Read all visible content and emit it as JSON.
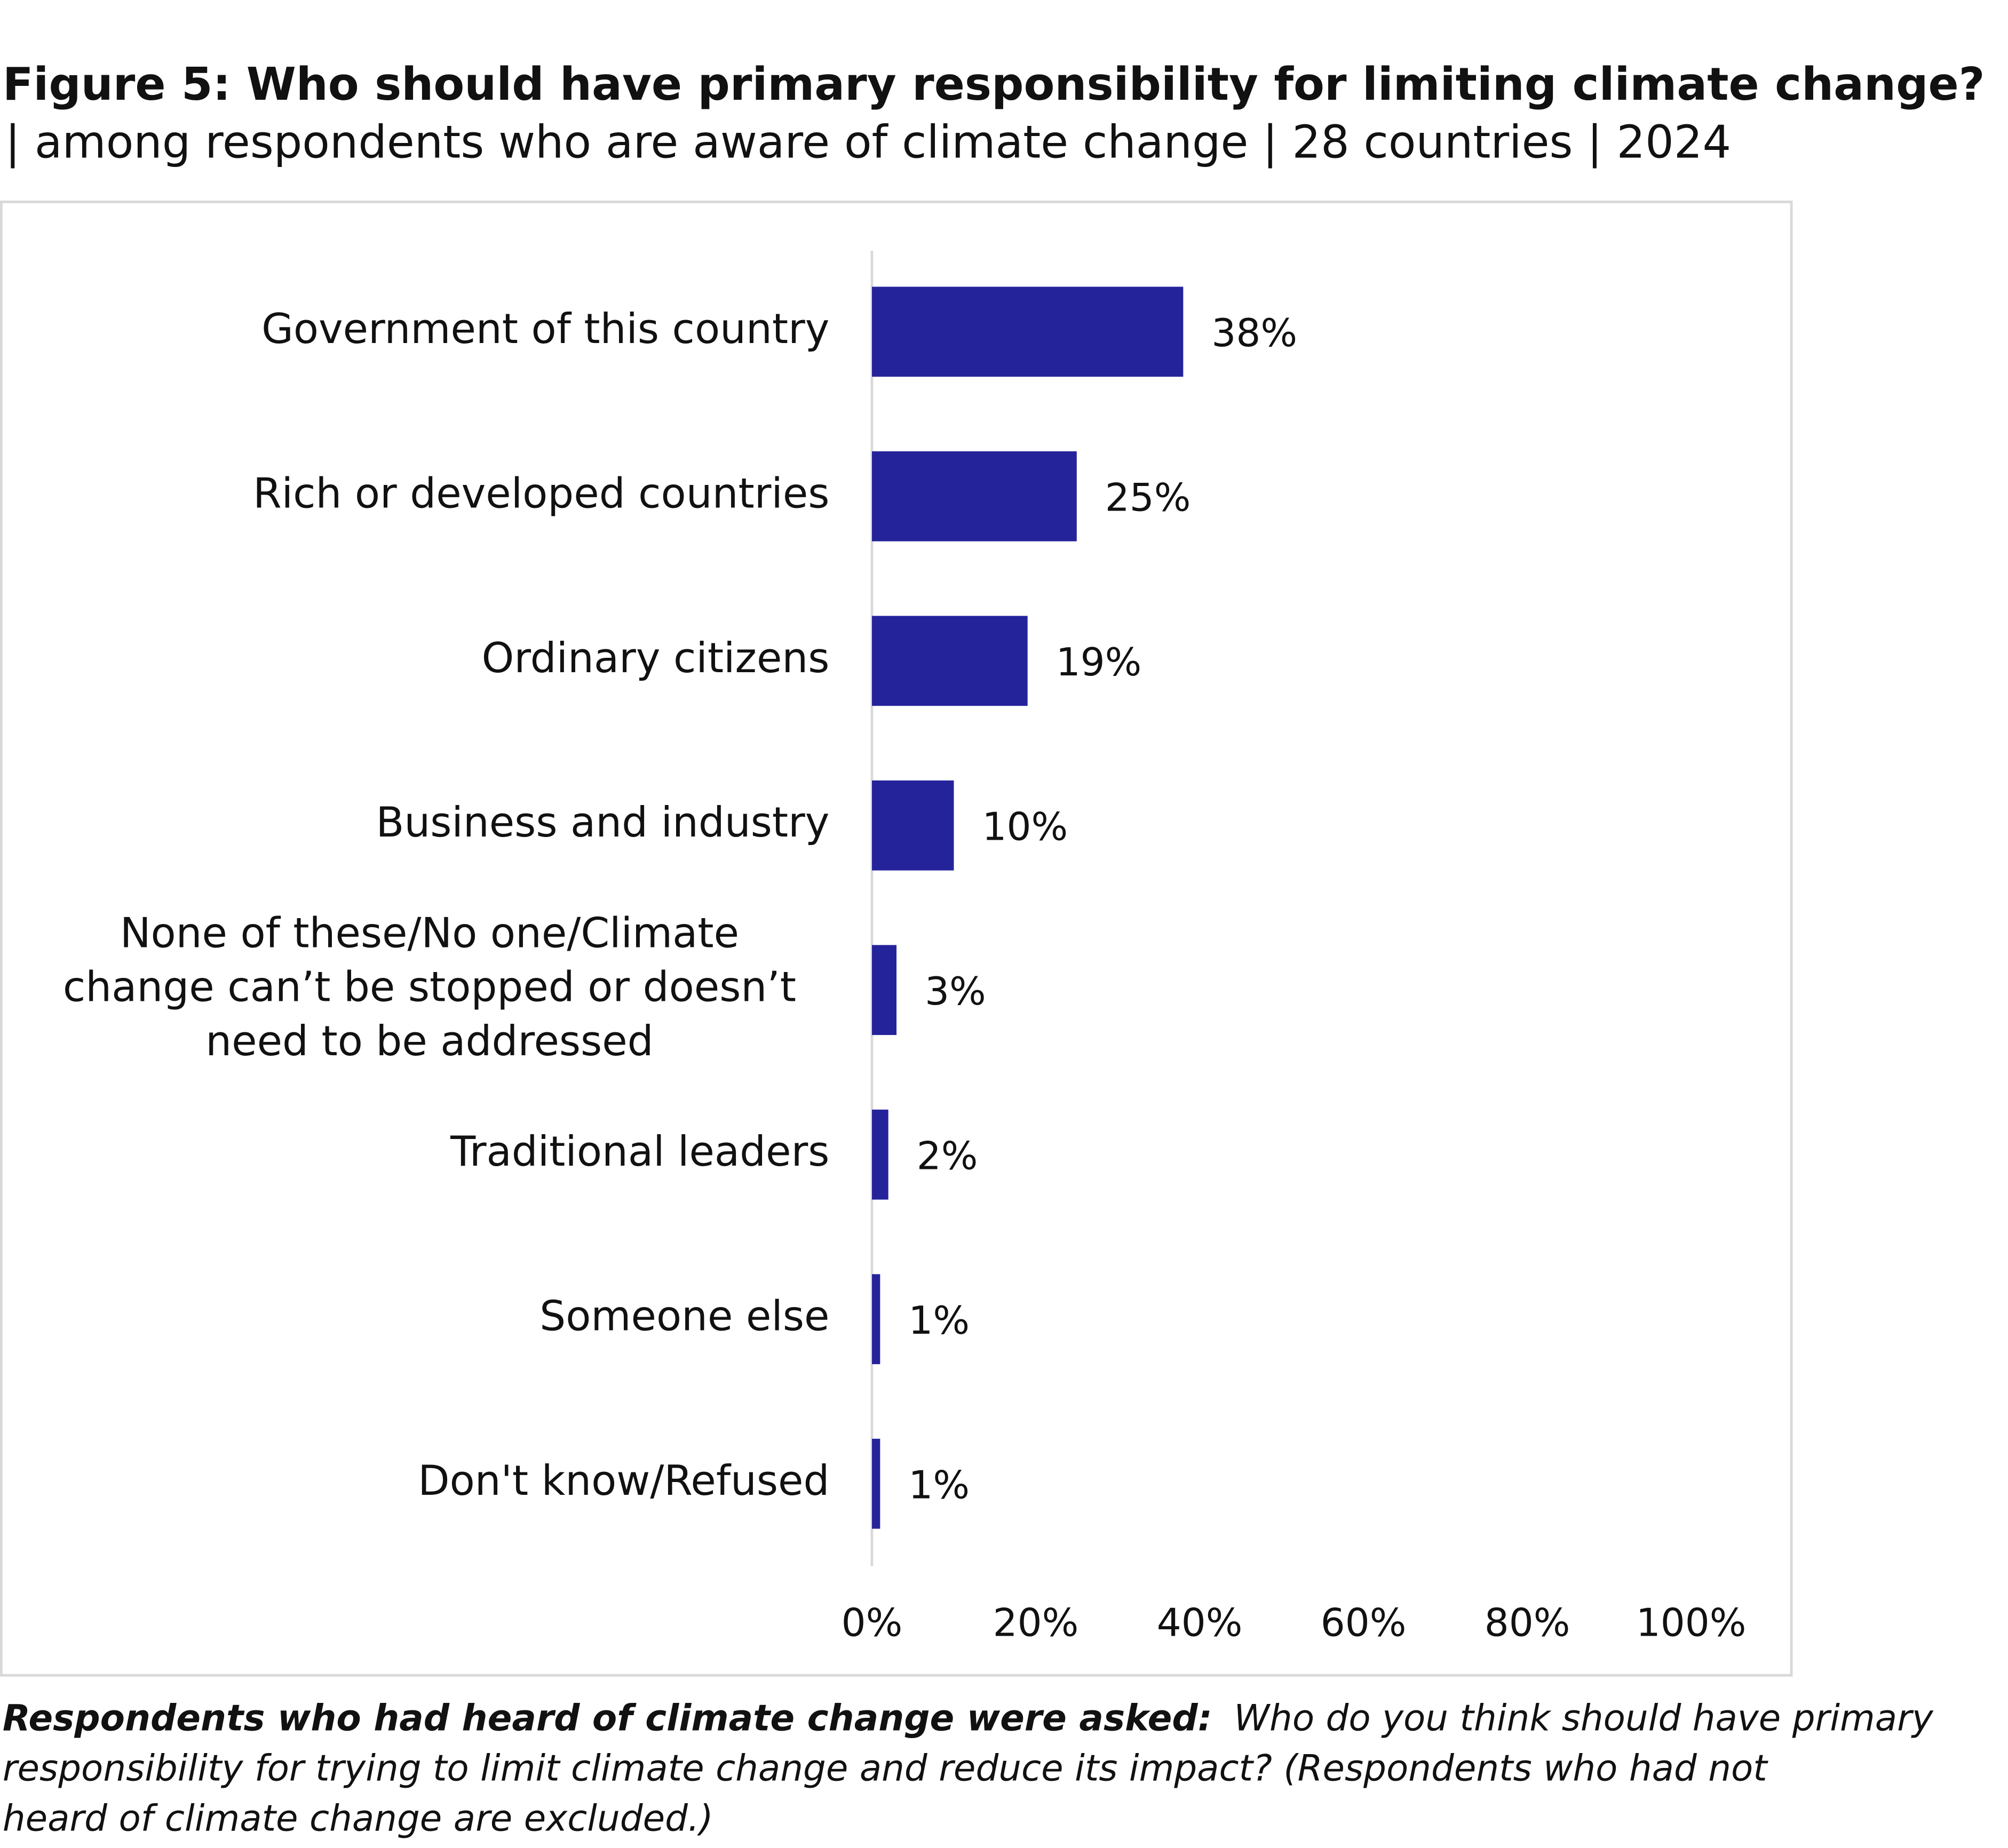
{
  "chart_data": {
    "type": "bar",
    "orientation": "horizontal",
    "title": "Figure 5: Who should have primary responsibility for limiting climate change?",
    "subtitle": "| among respondents who are aware of climate change | 28 countries | 2024",
    "categories": [
      "Government of this country",
      "Rich or developed countries",
      "Ordinary citizens",
      "Business and industry",
      "None of these/No one/Climate change can’t be stopped or doesn’t need to be addressed",
      "Traditional leaders",
      "Someone else",
      "Don't know/Refused"
    ],
    "values": [
      38,
      25,
      19,
      10,
      3,
      2,
      1,
      1
    ],
    "value_labels": [
      "38%",
      "25%",
      "19%",
      "10%",
      "3%",
      "2%",
      "1%",
      "1%"
    ],
    "color": "#25239a",
    "xlim": [
      0,
      100
    ],
    "xticks": [
      {
        "value": 0,
        "label": "0%"
      },
      {
        "value": 20,
        "label": "20%"
      },
      {
        "value": 40,
        "label": "40%"
      },
      {
        "value": 60,
        "label": "60%"
      },
      {
        "value": 80,
        "label": "80%"
      },
      {
        "value": 100,
        "label": "100%"
      }
    ],
    "grid": false,
    "note_label": "Respondents who had heard of climate change were asked:",
    "note_lines": [
      "Who do you think should have primary",
      "responsibility for trying to limit climate change and reduce its impact? (Respondents who had not",
      "heard of climate change are excluded.)"
    ]
  }
}
